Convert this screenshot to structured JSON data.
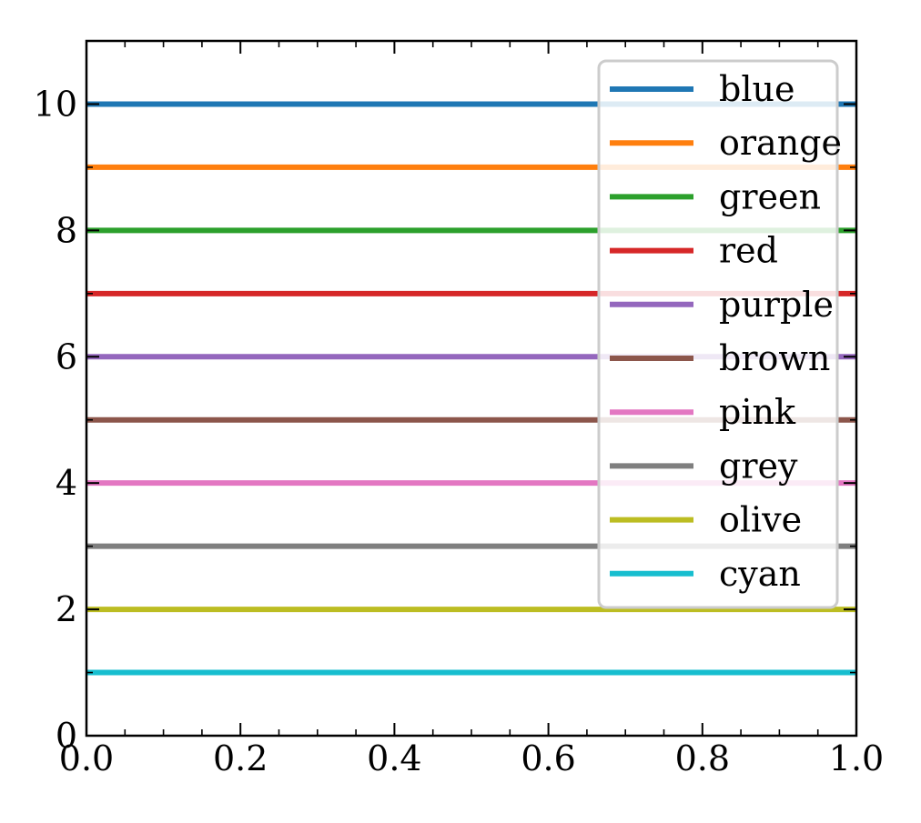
{
  "chart_data": {
    "type": "line",
    "title": "",
    "xlabel": "",
    "ylabel": "",
    "xlim": [
      0.0,
      1.0
    ],
    "ylim": [
      0,
      11
    ],
    "xticks": [
      "0.0",
      "0.2",
      "0.4",
      "0.6",
      "0.8",
      "1.0"
    ],
    "yticks": [
      "0",
      "2",
      "4",
      "6",
      "8",
      "10"
    ],
    "grid": false,
    "legend_position": "top-right",
    "series": [
      {
        "name": "blue",
        "color": "#1f77b4",
        "x": [
          0.0,
          1.0
        ],
        "y": [
          10,
          10
        ]
      },
      {
        "name": "orange",
        "color": "#ff7f0e",
        "x": [
          0.0,
          1.0
        ],
        "y": [
          9,
          9
        ]
      },
      {
        "name": "green",
        "color": "#2ca02c",
        "x": [
          0.0,
          1.0
        ],
        "y": [
          8,
          8
        ]
      },
      {
        "name": "red",
        "color": "#d62728",
        "x": [
          0.0,
          1.0
        ],
        "y": [
          7,
          7
        ]
      },
      {
        "name": "purple",
        "color": "#9467bd",
        "x": [
          0.0,
          1.0
        ],
        "y": [
          6,
          6
        ]
      },
      {
        "name": "brown",
        "color": "#8c564b",
        "x": [
          0.0,
          1.0
        ],
        "y": [
          5,
          5
        ]
      },
      {
        "name": "pink",
        "color": "#e377c2",
        "x": [
          0.0,
          1.0
        ],
        "y": [
          4,
          4
        ]
      },
      {
        "name": "grey",
        "color": "#7f7f7f",
        "x": [
          0.0,
          1.0
        ],
        "y": [
          3,
          3
        ]
      },
      {
        "name": "olive",
        "color": "#bcbd22",
        "x": [
          0.0,
          1.0
        ],
        "y": [
          2,
          2
        ]
      },
      {
        "name": "cyan",
        "color": "#17becf",
        "x": [
          0.0,
          1.0
        ],
        "y": [
          1,
          1
        ]
      }
    ]
  }
}
